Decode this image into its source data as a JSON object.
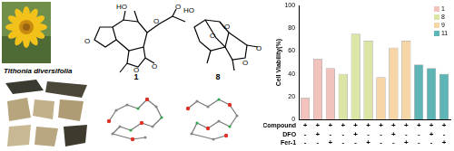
{
  "photo_caption": "Tithonia diversifolia",
  "structures": [
    {
      "label": "1",
      "atoms": [
        "HO",
        "O",
        "O",
        "O",
        "O",
        "O"
      ]
    },
    {
      "label": "8",
      "atoms": [
        "HO",
        "O",
        "O",
        "O",
        "O"
      ]
    }
  ],
  "chart_data": {
    "type": "bar",
    "y_label": "Cell Viability(%)",
    "categories": [
      null,
      null,
      null,
      null,
      null,
      null,
      null,
      null,
      null,
      null,
      null,
      null
    ],
    "conditions": [
      {
        "name": "Compound",
        "values": [
          "+",
          "+",
          "+",
          "+",
          "+",
          "+",
          "+",
          "+",
          "+",
          "+",
          "+",
          "+"
        ]
      },
      {
        "name": "DFO",
        "values": [
          "-",
          "+",
          "-",
          "-",
          "+",
          "-",
          "-",
          "+",
          "-",
          "-",
          "+",
          "-"
        ]
      },
      {
        "name": "Fer-1",
        "values": [
          "-",
          "-",
          "+",
          "-",
          "-",
          "+",
          "-",
          "-",
          "+",
          "-",
          "-",
          "+"
        ]
      }
    ],
    "series": [
      {
        "name": "1",
        "color": "#f2c2bc",
        "values": [
          19,
          53,
          45,
          null,
          null,
          null,
          null,
          null,
          null,
          null,
          null,
          null
        ]
      },
      {
        "name": "8",
        "color": "#dde5a6",
        "values": [
          null,
          null,
          null,
          40,
          75,
          69,
          null,
          null,
          null,
          null,
          null,
          null
        ]
      },
      {
        "name": "9",
        "color": "#f6d6a6",
        "values": [
          null,
          null,
          null,
          null,
          null,
          null,
          37,
          63,
          69,
          null,
          null,
          null
        ]
      },
      {
        "name": "11",
        "color": "#5fb4b6",
        "values": [
          null,
          null,
          null,
          null,
          null,
          null,
          null,
          null,
          null,
          48,
          45,
          40
        ]
      }
    ],
    "ylim": [
      0,
      100
    ],
    "yticks": [
      0,
      20,
      40,
      60,
      80,
      100
    ],
    "grid": false,
    "legend": "top-right"
  }
}
